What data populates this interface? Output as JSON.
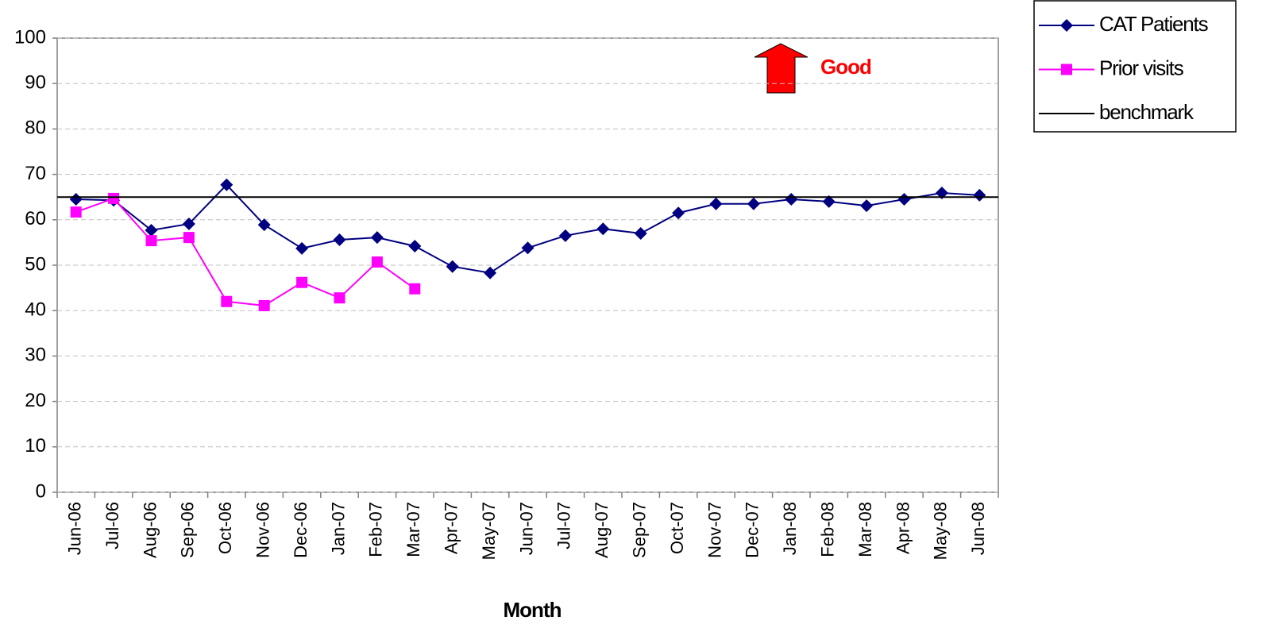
{
  "chart_data": {
    "type": "line",
    "x_label": "Month",
    "annotation": "Good",
    "categories": [
      "Jun-06",
      "Jul-06",
      "Aug-06",
      "Sep-06",
      "Oct-06",
      "Nov-06",
      "Dec-06",
      "Jan-07",
      "Feb-07",
      "Mar-07",
      "Apr-07",
      "May-07",
      "Jun-07",
      "Jul-07",
      "Aug-07",
      "Sep-07",
      "Oct-07",
      "Nov-07",
      "Dec-07",
      "Jan-08",
      "Feb-08",
      "Mar-08",
      "Apr-08",
      "May-08",
      "Jun-08"
    ],
    "series": [
      {
        "name": "CAT Patients",
        "color": "#000080",
        "marker": "diamond",
        "values": [
          64.5,
          64.3,
          57.7,
          59.1,
          67.7,
          58.9,
          53.7,
          55.6,
          56.1,
          54.2,
          49.7,
          48.3,
          53.8,
          56.5,
          58.0,
          57.0,
          61.5,
          63.5,
          63.5,
          64.5,
          64.0,
          63.1,
          64.5,
          65.9,
          65.4
        ]
      },
      {
        "name": "Prior visits",
        "color": "#ff00ff",
        "marker": "square",
        "values": [
          61.7,
          64.7,
          55.4,
          56.1,
          42.0,
          41.1,
          46.2,
          42.8,
          50.7,
          44.8,
          null,
          null,
          null,
          null,
          null,
          null,
          null,
          null,
          null,
          null,
          null,
          null,
          null,
          null,
          null
        ]
      },
      {
        "name": "benchmark",
        "color": "#000000",
        "value": 65
      }
    ],
    "ylim": [
      0,
      100
    ],
    "yticks": [
      0,
      10,
      20,
      30,
      40,
      50,
      60,
      70,
      80,
      90,
      100
    ],
    "grid": true,
    "legend": "top-right"
  }
}
